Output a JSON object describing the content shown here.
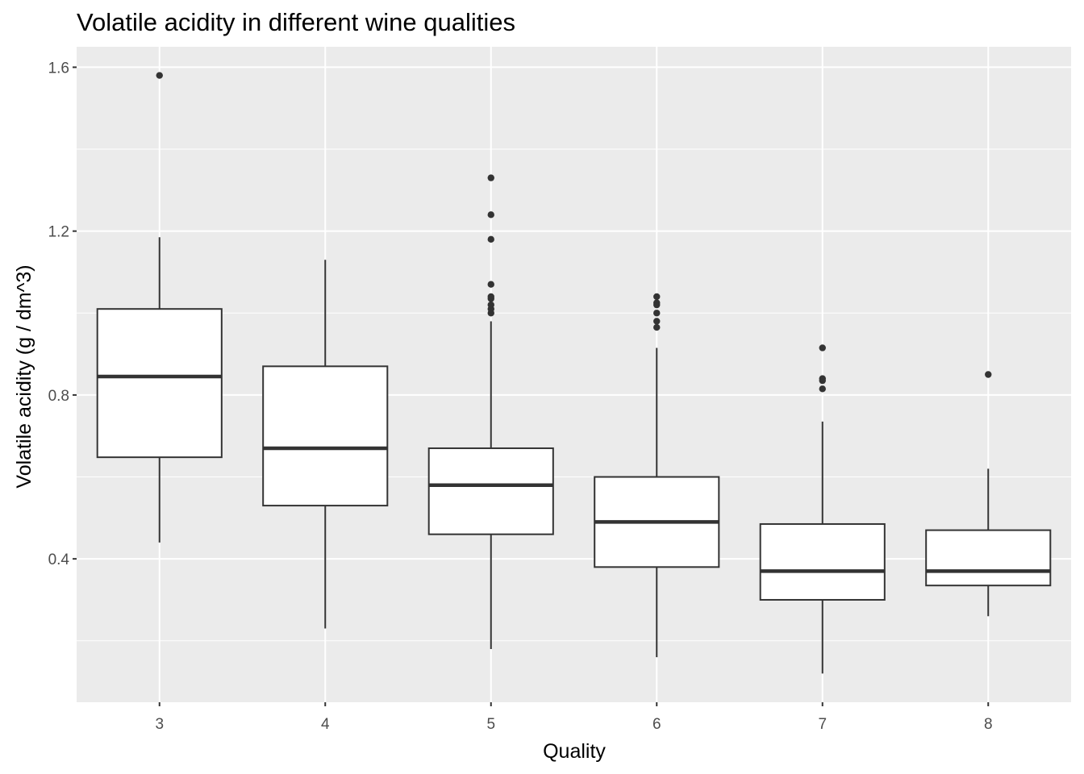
{
  "chart_data": {
    "type": "boxplot",
    "title": "Volatile acidity in different wine qualities",
    "xlabel": "Quality",
    "ylabel": "Volatile acidity (g / dm^3)",
    "ylim": [
      0.05,
      1.65
    ],
    "yticks": [
      0.4,
      0.8,
      1.2,
      1.6
    ],
    "yticks_labels": [
      "0.4",
      "0.8",
      "1.2",
      "1.6"
    ],
    "grid": true,
    "categories": [
      "3",
      "4",
      "5",
      "6",
      "7",
      "8"
    ],
    "boxes": [
      {
        "category": "3",
        "whisker_low": 0.44,
        "q1": 0.648,
        "median": 0.845,
        "q3": 1.01,
        "whisker_high": 1.185,
        "outliers": [
          1.58
        ]
      },
      {
        "category": "4",
        "whisker_low": 0.23,
        "q1": 0.53,
        "median": 0.67,
        "q3": 0.87,
        "whisker_high": 1.13,
        "outliers": []
      },
      {
        "category": "5",
        "whisker_low": 0.18,
        "q1": 0.46,
        "median": 0.58,
        "q3": 0.67,
        "whisker_high": 0.98,
        "outliers": [
          1.0,
          1.01,
          1.02,
          1.035,
          1.04,
          1.07,
          1.18,
          1.24,
          1.33
        ]
      },
      {
        "category": "6",
        "whisker_low": 0.16,
        "q1": 0.38,
        "median": 0.49,
        "q3": 0.6,
        "whisker_high": 0.915,
        "outliers": [
          0.965,
          0.98,
          1.0,
          1.02,
          1.025,
          1.04
        ]
      },
      {
        "category": "7",
        "whisker_low": 0.12,
        "q1": 0.3,
        "median": 0.37,
        "q3": 0.485,
        "whisker_high": 0.735,
        "outliers": [
          0.815,
          0.835,
          0.84,
          0.915
        ]
      },
      {
        "category": "8",
        "whisker_low": 0.26,
        "q1": 0.335,
        "median": 0.37,
        "q3": 0.47,
        "whisker_high": 0.62,
        "outliers": [
          0.85
        ]
      }
    ]
  }
}
